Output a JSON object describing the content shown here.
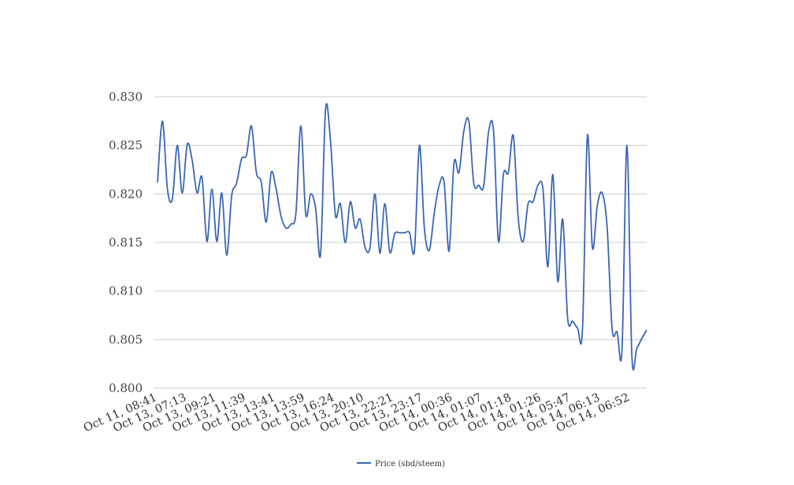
{
  "chart_data": {
    "type": "line",
    "title": "",
    "xlabel": "",
    "ylabel": "",
    "ylim": [
      0.8,
      0.83
    ],
    "yticks": [
      "0.800",
      "0.805",
      "0.810",
      "0.815",
      "0.820",
      "0.825",
      "0.830"
    ],
    "xticks": [
      "Oct 11, 08:41",
      "Oct 13, 07:13",
      "Oct 13, 09:21",
      "Oct 13, 11:39",
      "Oct 13, 13:41",
      "Oct 13, 13:59",
      "Oct 13, 16:24",
      "Oct 13, 20:10",
      "Oct 13, 22:21",
      "Oct 13, 23:17",
      "Oct 14, 00:36",
      "Oct 14, 01:07",
      "Oct 14, 01:18",
      "Oct 14, 01:26",
      "Oct 14, 05:47",
      "Oct 14, 06:13",
      "Oct 14, 06:52"
    ],
    "grid": true,
    "legend_position": "bottom",
    "series": [
      {
        "name": "Price (sbd/steem)",
        "color": "#3a66b3",
        "values": [
          0.8212,
          0.8275,
          0.8205,
          0.8195,
          0.825,
          0.8201,
          0.8251,
          0.8235,
          0.8201,
          0.8217,
          0.8151,
          0.8205,
          0.8151,
          0.8201,
          0.8137,
          0.8198,
          0.8211,
          0.8236,
          0.824,
          0.827,
          0.8222,
          0.8212,
          0.8171,
          0.8222,
          0.8205,
          0.8177,
          0.8165,
          0.8169,
          0.818,
          0.827,
          0.8179,
          0.82,
          0.8185,
          0.8138,
          0.8287,
          0.8255,
          0.8178,
          0.819,
          0.815,
          0.8192,
          0.8165,
          0.8174,
          0.8145,
          0.8145,
          0.82,
          0.8139,
          0.819,
          0.814,
          0.8159,
          0.816,
          0.816,
          0.816,
          0.8142,
          0.825,
          0.8165,
          0.8142,
          0.818,
          0.8209,
          0.8212,
          0.8141,
          0.8232,
          0.8222,
          0.8265,
          0.8275,
          0.8211,
          0.8209,
          0.8208,
          0.8264,
          0.8265,
          0.8151,
          0.822,
          0.8222,
          0.826,
          0.8175,
          0.8151,
          0.819,
          0.8192,
          0.8209,
          0.8205,
          0.8125,
          0.822,
          0.811,
          0.8174,
          0.8072,
          0.8069,
          0.8062,
          0.806,
          0.826,
          0.8145,
          0.8188,
          0.8201,
          0.8165,
          0.8061,
          0.8058,
          0.8039,
          0.825,
          0.8033,
          0.8041,
          0.8051,
          0.806
        ]
      }
    ]
  }
}
